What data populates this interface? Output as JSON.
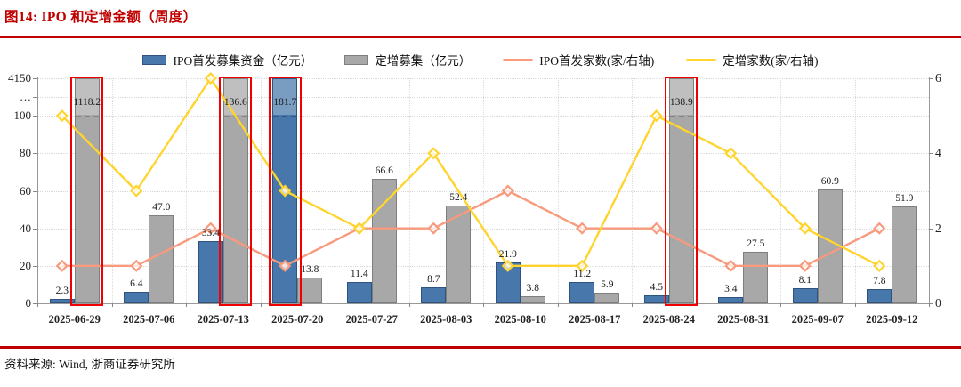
{
  "title": "图14:  IPO 和定增金额（周度）",
  "source": "资料来源: Wind, 浙商证券研究所",
  "colors": {
    "accent_red": "#c00000",
    "highlight_box_red": "#f20000",
    "bar_ipo": "#4878ab",
    "bar_ipo_border": "#2e5380",
    "bar_dingzeng": "#a8a8a8",
    "bar_dingzeng_border": "#7f7f7f",
    "line_ipo_count": "#f79a7d",
    "line_dingzeng_count": "#ffd42e",
    "gridline": "#d8d8d8",
    "axis": "#999999"
  },
  "chart_data": {
    "type": "bar+line combo with broken left axis",
    "categories": [
      "2025-06-29",
      "2025-07-06",
      "2025-07-13",
      "2025-07-20",
      "2025-07-27",
      "2025-08-03",
      "2025-08-10",
      "2025-08-17",
      "2025-08-24",
      "2025-08-31",
      "2025-09-07",
      "2025-09-12"
    ],
    "series": [
      {
        "name": "IPO首发募集资金（亿元）",
        "type": "bar",
        "axis": "left",
        "values": [
          2.3,
          6.4,
          33.4,
          181.7,
          11.4,
          8.7,
          21.9,
          11.2,
          4.5,
          3.4,
          8.1,
          7.8
        ]
      },
      {
        "name": "定增募集（亿元）",
        "type": "bar",
        "axis": "left",
        "values": [
          1118.2,
          47.0,
          136.6,
          13.8,
          66.6,
          52.4,
          3.8,
          5.9,
          138.9,
          27.5,
          60.9,
          51.9
        ]
      },
      {
        "name": "IPO首发家数(家/右轴)",
        "type": "line",
        "axis": "right",
        "values": [
          1,
          1,
          2,
          1,
          2,
          2,
          3,
          2,
          2,
          1,
          1,
          2
        ]
      },
      {
        "name": "定增家数(家/右轴)",
        "type": "line",
        "axis": "right",
        "values": [
          5,
          3,
          6,
          3,
          2,
          4,
          1,
          1,
          5,
          4,
          2,
          1
        ]
      }
    ],
    "left_axis": {
      "ticks": [
        0,
        20,
        40,
        60,
        80,
        100
      ],
      "break_label": "…",
      "top_label": "4150",
      "visible_max": 120,
      "break_value": 100
    },
    "right_axis": {
      "ticks": [
        0,
        2,
        4,
        6
      ],
      "max": 6
    },
    "highlighted_bars": [
      {
        "category": "2025-06-29",
        "series": 1
      },
      {
        "category": "2025-07-13",
        "series": 1
      },
      {
        "category": "2025-07-20",
        "series": 0
      },
      {
        "category": "2025-08-24",
        "series": 1
      }
    ],
    "grid": true,
    "legend_position": "top"
  }
}
